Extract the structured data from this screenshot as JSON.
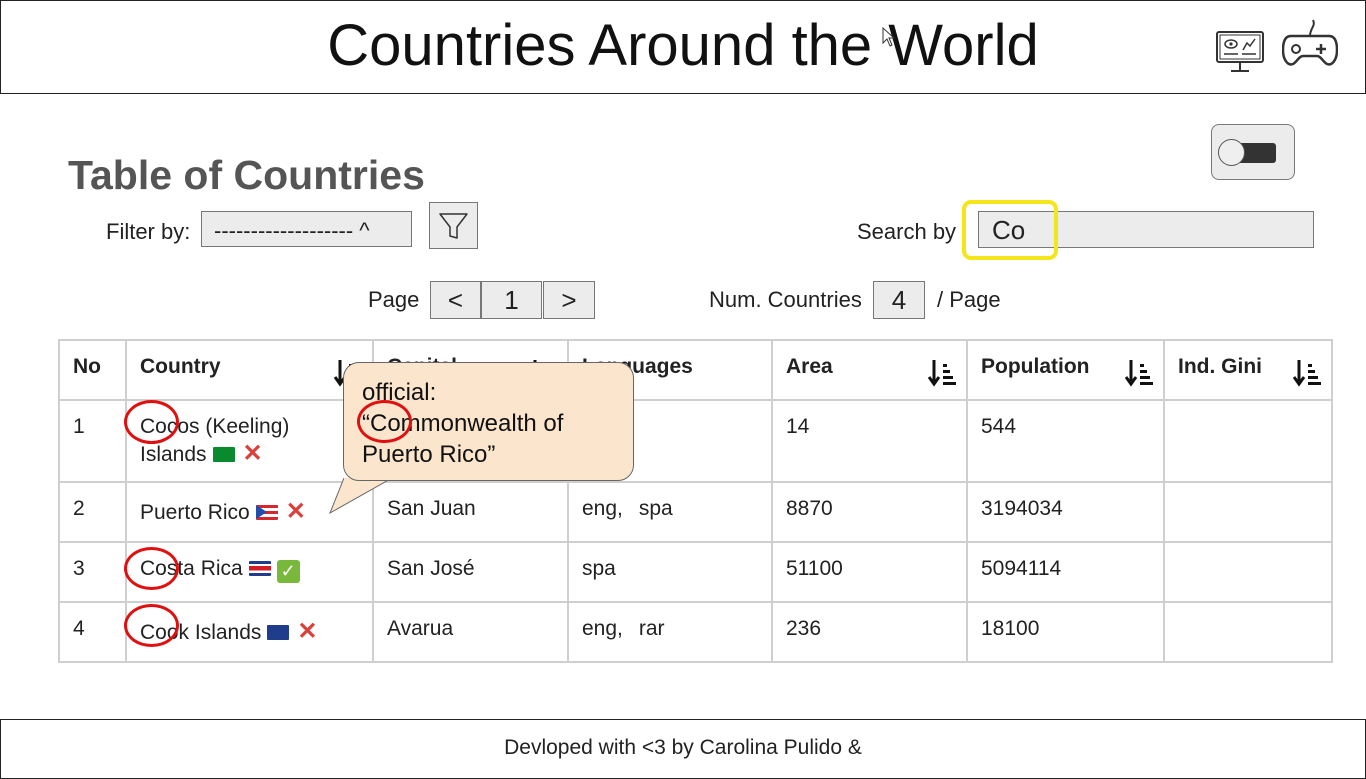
{
  "header": {
    "title": "Countries Around the World",
    "icons": [
      "monitor-dashboard-icon",
      "gamepad-icon"
    ]
  },
  "section": {
    "title": "Table of Countries"
  },
  "filter": {
    "label": "Filter by:",
    "value": "------------------- ^",
    "button_icon": "filter-funnel-icon"
  },
  "search": {
    "label": "Search by",
    "value": "Co"
  },
  "pagination": {
    "label": "Page",
    "prev": "<",
    "page": "1",
    "next": ">",
    "num_label": "Num. Countries",
    "num_value": "4",
    "per_page_label": "/ Page"
  },
  "table": {
    "headers": {
      "no": "No",
      "country": "Country",
      "capital": "Capital",
      "languages": "Languages",
      "area": "Area",
      "population": "Population",
      "gini": "Ind. Gini"
    },
    "rows": [
      {
        "no": "1",
        "country": "Cocos (Keeling) Islands",
        "flag": "cc",
        "independent": false,
        "capital": "",
        "languages": [],
        "area": "14",
        "population": "544",
        "gini": ""
      },
      {
        "no": "2",
        "country": "Puerto Rico",
        "flag": "pr",
        "independent": false,
        "capital": "San Juan",
        "languages": [
          "eng,",
          "spa"
        ],
        "area": "8870",
        "population": "3194034",
        "gini": ""
      },
      {
        "no": "3",
        "country": "Costa Rica",
        "flag": "cr",
        "independent": true,
        "capital": "San José",
        "languages": [
          "spa"
        ],
        "area": "51100",
        "population": "5094114",
        "gini": ""
      },
      {
        "no": "4",
        "country": "Cook Islands",
        "flag": "ck",
        "independent": false,
        "capital": "Avarua",
        "languages": [
          "eng,",
          "rar"
        ],
        "area": "236",
        "population": "18100",
        "gini": ""
      }
    ]
  },
  "tooltip": {
    "line1": "official:",
    "line2": "“Commonwealth of",
    "line3": "Puerto Rico”"
  },
  "footer": {
    "text": "Devloped with <3 by Carolina Pulido &"
  },
  "colors": {
    "highlight": "#f5e61b",
    "annotation_circle": "#e01010",
    "tooltip_bg": "#fbe5cd",
    "control_bg": "#ececec"
  }
}
